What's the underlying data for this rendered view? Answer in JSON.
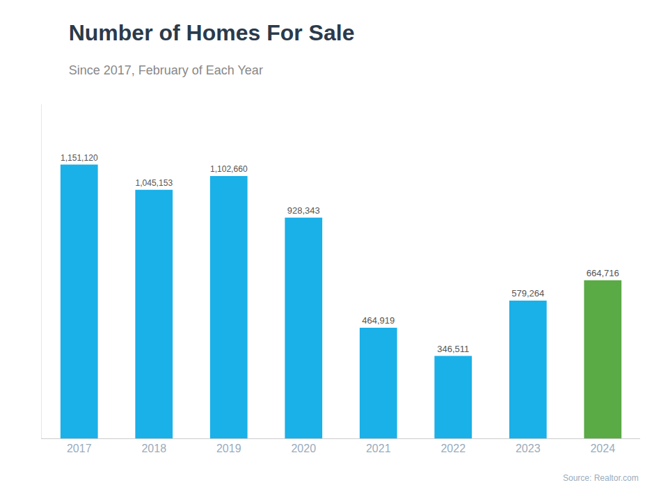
{
  "chart_data": {
    "type": "bar",
    "title": "Number of Homes For Sale",
    "subtitle": "Since 2017, February of Each Year",
    "annotations": [
      "Source: Realtor.com"
    ],
    "categories": [
      "2017",
      "2018",
      "2019",
      "2020",
      "2021",
      "2022",
      "2023",
      "2024"
    ],
    "values": [
      1151120,
      1045153,
      1102660,
      928343,
      464919,
      346511,
      579264,
      664716
    ],
    "value_labels": [
      "1,151,120",
      "1,045,153",
      "1,102,660",
      "928,343",
      "464,919",
      "346,511",
      "579,264",
      "664,716"
    ],
    "colors": [
      "#1ab0e8",
      "#1ab0e8",
      "#1ab0e8",
      "#1ab0e8",
      "#1ab0e8",
      "#1ab0e8",
      "#1ab0e8",
      "#5aaa46"
    ],
    "data_labels": true,
    "ylim": [
      0,
      1404366.4
    ],
    "grid": false,
    "tick_labels": "x"
  }
}
